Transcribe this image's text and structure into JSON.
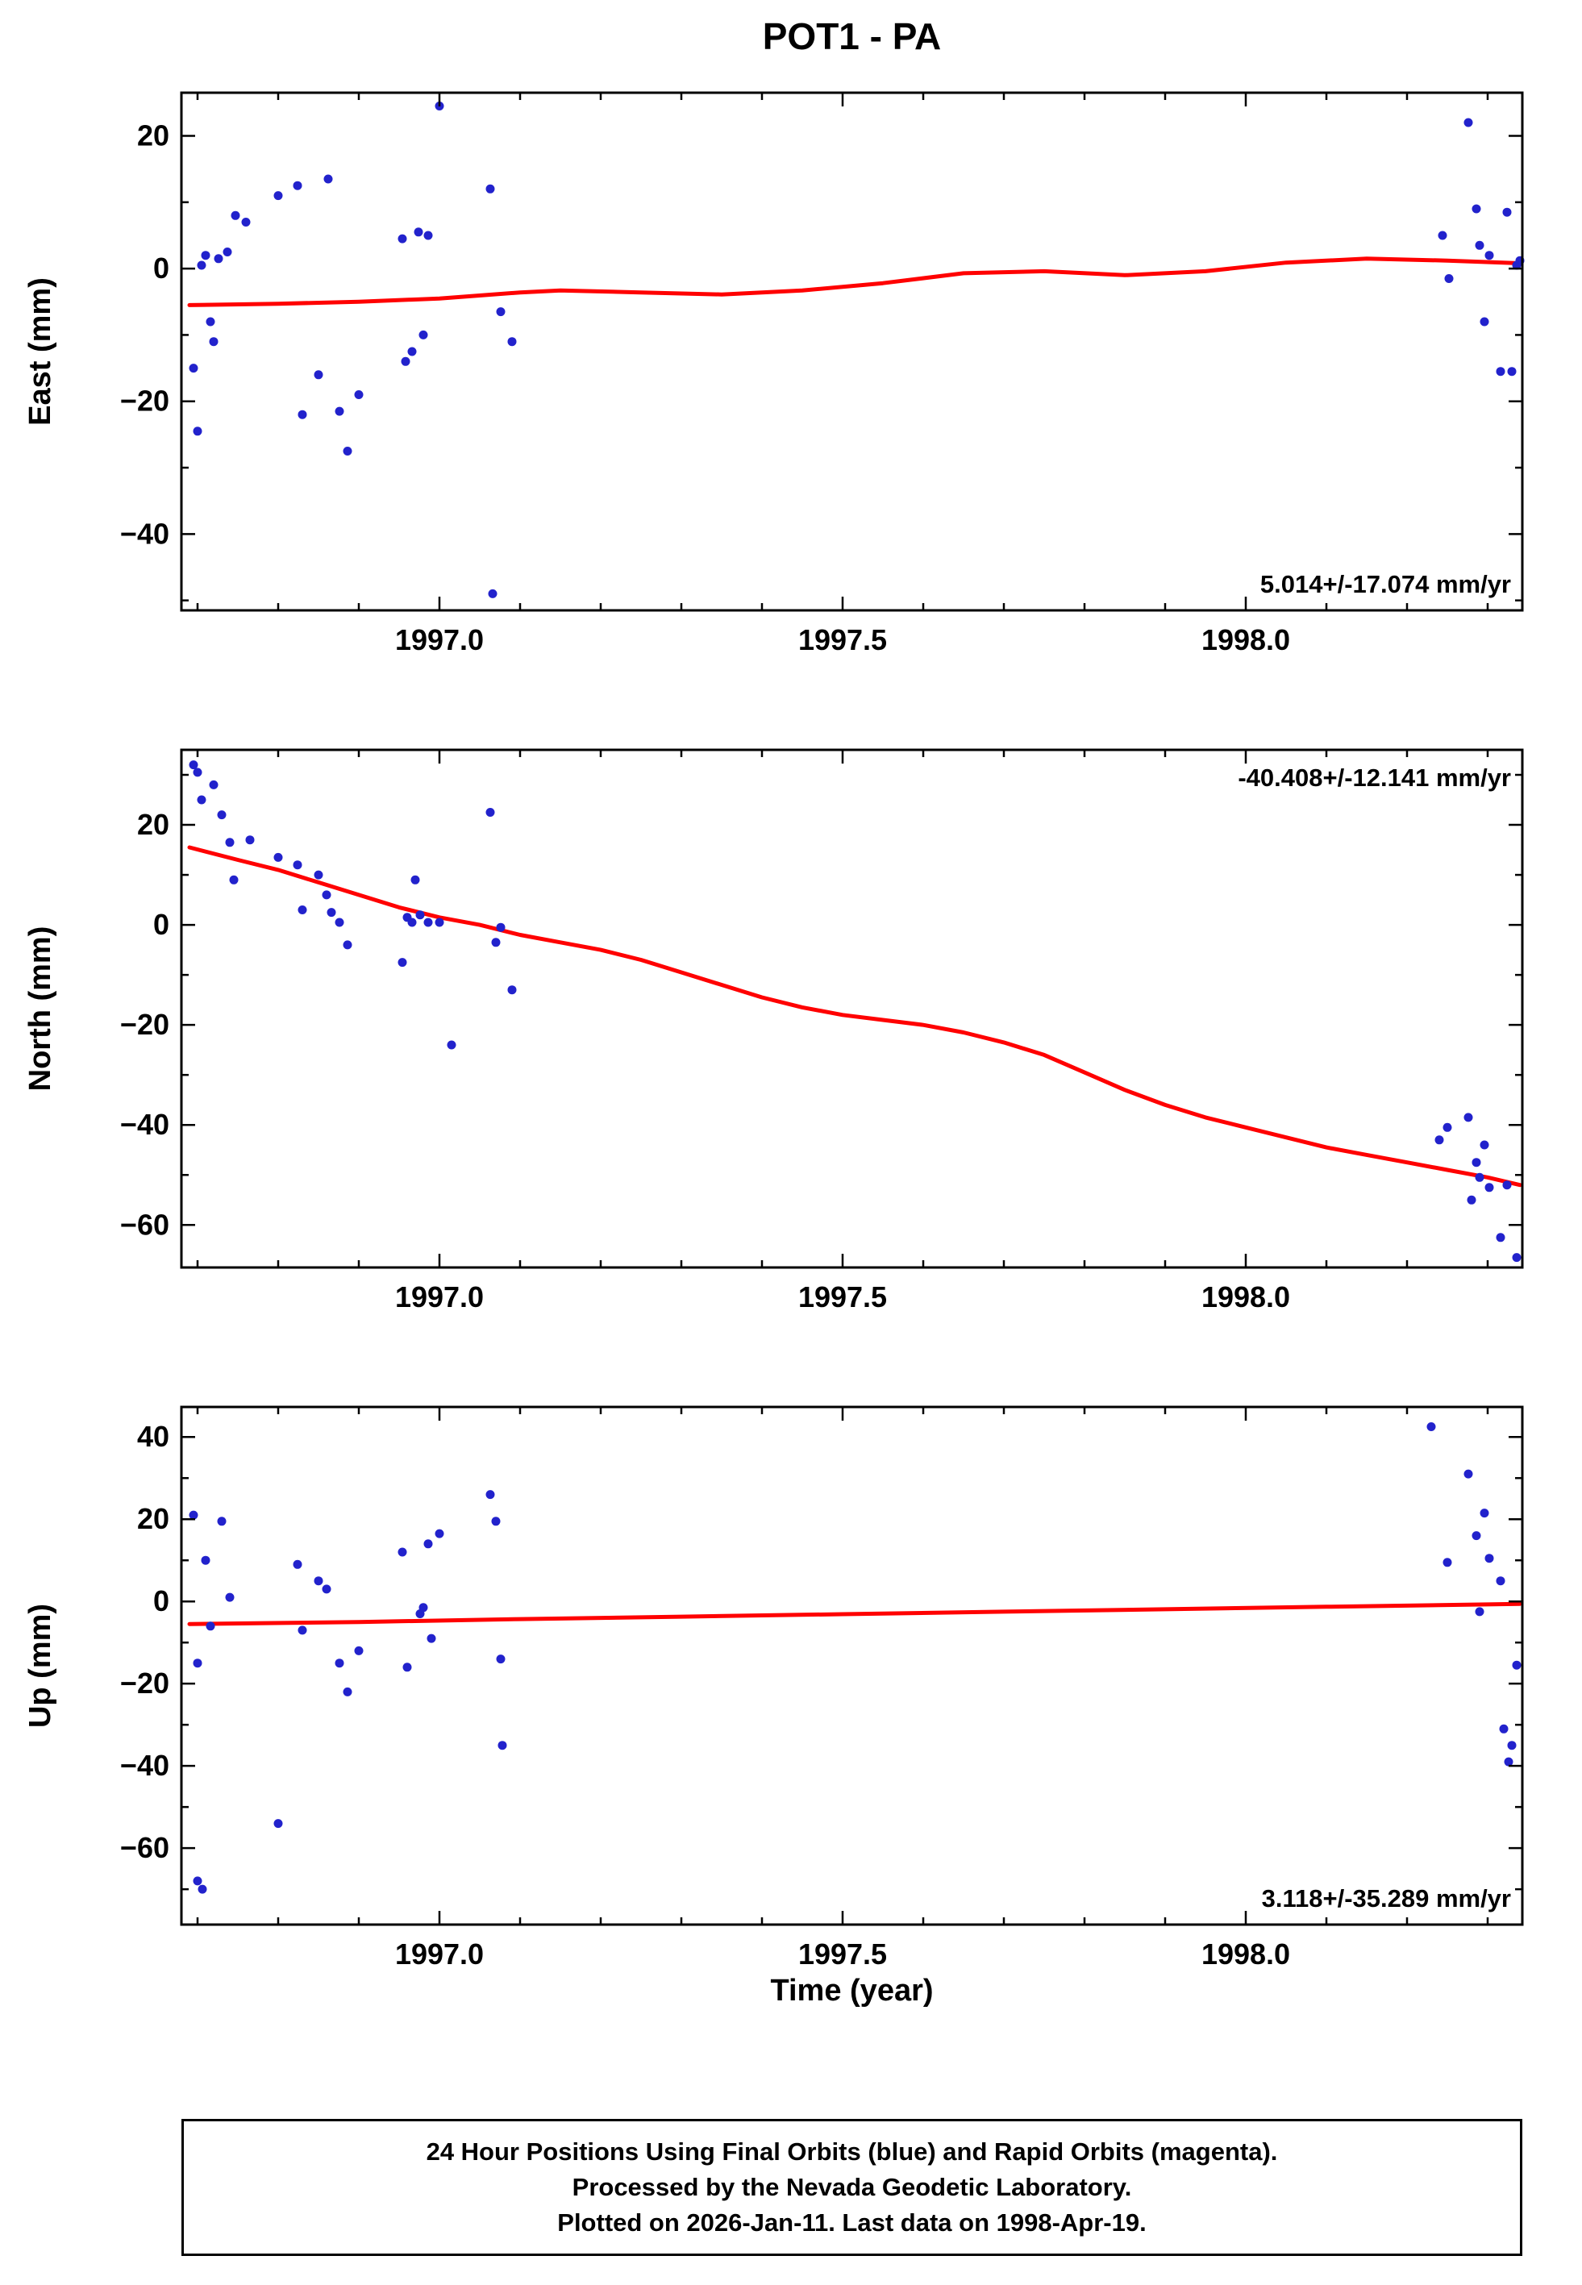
{
  "title": "POT1 - PA",
  "xlabel": "Time (year)",
  "colors": {
    "points": "#2222cc",
    "trend": "#ff0000",
    "frame": "#000000"
  },
  "footer": {
    "line1": "24 Hour Positions Using Final Orbits (blue) and Rapid Orbits (magenta).",
    "line2": "Processed by the Nevada Geodetic Laboratory.",
    "line3": "Plotted on 2026-Jan-11. Last data on 1998-Apr-19."
  },
  "chart_data": [
    {
      "type": "scatter",
      "name": "east",
      "ylabel": "East (mm)",
      "annotation": "5.014+/-17.074 mm/yr",
      "annotation_pos": "bottom-right",
      "xlim": [
        1996.68,
        1998.343
      ],
      "ylim": [
        -51.5,
        26.5
      ],
      "xticks": [
        1997.0,
        1997.5,
        1998.0
      ],
      "yticks": [
        20,
        0,
        -20,
        -40
      ],
      "points": [
        [
          1996.695,
          -15
        ],
        [
          1996.7,
          -24.5
        ],
        [
          1996.705,
          0.5
        ],
        [
          1996.71,
          2
        ],
        [
          1996.716,
          -8
        ],
        [
          1996.72,
          -11
        ],
        [
          1996.726,
          1.5
        ],
        [
          1996.737,
          2.5
        ],
        [
          1996.747,
          8
        ],
        [
          1996.76,
          7
        ],
        [
          1996.8,
          11
        ],
        [
          1996.824,
          12.5
        ],
        [
          1996.83,
          -22
        ],
        [
          1996.85,
          -16
        ],
        [
          1996.862,
          13.5
        ],
        [
          1996.876,
          -21.5
        ],
        [
          1996.886,
          -27.5
        ],
        [
          1996.9,
          -19
        ],
        [
          1996.954,
          4.5
        ],
        [
          1996.958,
          -14
        ],
        [
          1996.966,
          -12.5
        ],
        [
          1996.974,
          5.5
        ],
        [
          1996.98,
          -10
        ],
        [
          1996.986,
          5
        ],
        [
          1997.0,
          24.5
        ],
        [
          1997.063,
          12
        ],
        [
          1997.066,
          -49
        ],
        [
          1997.076,
          -6.5
        ],
        [
          1997.09,
          -11
        ],
        [
          1998.244,
          5
        ],
        [
          1998.252,
          -1.5
        ],
        [
          1998.276,
          22
        ],
        [
          1998.286,
          9
        ],
        [
          1998.29,
          3.5
        ],
        [
          1998.296,
          -8
        ],
        [
          1998.302,
          2
        ],
        [
          1998.316,
          -15.5
        ],
        [
          1998.324,
          8.5
        ],
        [
          1998.33,
          -15.5
        ],
        [
          1998.336,
          0.5
        ],
        [
          1998.34,
          1.2
        ]
      ],
      "trend": [
        [
          1996.69,
          -5.5
        ],
        [
          1996.8,
          -5.3
        ],
        [
          1996.9,
          -5.0
        ],
        [
          1997.0,
          -4.5
        ],
        [
          1997.1,
          -3.6
        ],
        [
          1997.15,
          -3.3
        ],
        [
          1997.25,
          -3.6
        ],
        [
          1997.35,
          -3.9
        ],
        [
          1997.45,
          -3.3
        ],
        [
          1997.55,
          -2.2
        ],
        [
          1997.65,
          -0.7
        ],
        [
          1997.75,
          -0.4
        ],
        [
          1997.85,
          -1.0
        ],
        [
          1997.95,
          -0.4
        ],
        [
          1998.05,
          0.9
        ],
        [
          1998.15,
          1.5
        ],
        [
          1998.25,
          1.2
        ],
        [
          1998.34,
          0.8
        ]
      ]
    },
    {
      "type": "scatter",
      "name": "north",
      "ylabel": "North (mm)",
      "annotation": "-40.408+/-12.141 mm/yr",
      "annotation_pos": "top-right",
      "xlim": [
        1996.68,
        1998.343
      ],
      "ylim": [
        -68.5,
        35
      ],
      "xticks": [
        1997.0,
        1997.5,
        1998.0
      ],
      "yticks": [
        20,
        0,
        -20,
        -40,
        -60
      ],
      "points": [
        [
          1996.695,
          32
        ],
        [
          1996.7,
          30.5
        ],
        [
          1996.705,
          25
        ],
        [
          1996.72,
          28
        ],
        [
          1996.73,
          22
        ],
        [
          1996.74,
          16.5
        ],
        [
          1996.745,
          9
        ],
        [
          1996.765,
          17
        ],
        [
          1996.8,
          13.5
        ],
        [
          1996.824,
          12
        ],
        [
          1996.83,
          3
        ],
        [
          1996.85,
          10
        ],
        [
          1996.86,
          6
        ],
        [
          1996.866,
          2.5
        ],
        [
          1996.876,
          0.5
        ],
        [
          1996.886,
          -4
        ],
        [
          1996.954,
          -7.5
        ],
        [
          1996.96,
          1.5
        ],
        [
          1996.966,
          0.5
        ],
        [
          1996.97,
          9
        ],
        [
          1996.976,
          2
        ],
        [
          1996.986,
          0.5
        ],
        [
          1997.0,
          0.5
        ],
        [
          1997.015,
          -24
        ],
        [
          1997.063,
          22.5
        ],
        [
          1997.07,
          -3.5
        ],
        [
          1997.076,
          -0.5
        ],
        [
          1997.09,
          -13
        ],
        [
          1998.24,
          -43
        ],
        [
          1998.25,
          -40.5
        ],
        [
          1998.276,
          -38.5
        ],
        [
          1998.28,
          -55
        ],
        [
          1998.286,
          -47.5
        ],
        [
          1998.29,
          -50.5
        ],
        [
          1998.296,
          -44
        ],
        [
          1998.302,
          -52.5
        ],
        [
          1998.316,
          -62.5
        ],
        [
          1998.324,
          -52
        ],
        [
          1998.336,
          -66.5
        ]
      ],
      "trend": [
        [
          1996.69,
          15.5
        ],
        [
          1996.75,
          13
        ],
        [
          1996.8,
          11
        ],
        [
          1996.85,
          8.5
        ],
        [
          1996.9,
          6
        ],
        [
          1996.95,
          3.5
        ],
        [
          1997.0,
          1.5
        ],
        [
          1997.05,
          0
        ],
        [
          1997.1,
          -2
        ],
        [
          1997.15,
          -3.5
        ],
        [
          1997.2,
          -5
        ],
        [
          1997.25,
          -7
        ],
        [
          1997.3,
          -9.5
        ],
        [
          1997.35,
          -12
        ],
        [
          1997.4,
          -14.5
        ],
        [
          1997.45,
          -16.5
        ],
        [
          1997.5,
          -18
        ],
        [
          1997.55,
          -19
        ],
        [
          1997.6,
          -20
        ],
        [
          1997.65,
          -21.5
        ],
        [
          1997.7,
          -23.5
        ],
        [
          1997.75,
          -26
        ],
        [
          1997.8,
          -29.5
        ],
        [
          1997.85,
          -33
        ],
        [
          1997.9,
          -36
        ],
        [
          1997.95,
          -38.5
        ],
        [
          1998.0,
          -40.5
        ],
        [
          1998.05,
          -42.5
        ],
        [
          1998.1,
          -44.5
        ],
        [
          1998.15,
          -46
        ],
        [
          1998.2,
          -47.5
        ],
        [
          1998.25,
          -49
        ],
        [
          1998.3,
          -50.5
        ],
        [
          1998.34,
          -52
        ]
      ]
    },
    {
      "type": "scatter",
      "name": "up",
      "ylabel": "Up (mm)",
      "annotation": "3.118+/-35.289 mm/yr",
      "annotation_pos": "bottom-right",
      "xlim": [
        1996.68,
        1998.343
      ],
      "ylim": [
        -78.6,
        47.3
      ],
      "xticks": [
        1997.0,
        1997.5,
        1998.0
      ],
      "yticks": [
        40,
        20,
        0,
        -20,
        -40,
        -60
      ],
      "points": [
        [
          1996.695,
          21
        ],
        [
          1996.7,
          -15
        ],
        [
          1996.7,
          -68
        ],
        [
          1996.706,
          -70
        ],
        [
          1996.71,
          10
        ],
        [
          1996.716,
          -6
        ],
        [
          1996.73,
          19.5
        ],
        [
          1996.74,
          1
        ],
        [
          1996.8,
          -54
        ],
        [
          1996.824,
          9
        ],
        [
          1996.83,
          -7
        ],
        [
          1996.85,
          5
        ],
        [
          1996.86,
          3
        ],
        [
          1996.876,
          -15
        ],
        [
          1996.886,
          -22
        ],
        [
          1996.9,
          -12
        ],
        [
          1996.954,
          12
        ],
        [
          1996.96,
          -16
        ],
        [
          1996.976,
          -3
        ],
        [
          1996.98,
          -1.5
        ],
        [
          1996.986,
          14
        ],
        [
          1996.99,
          -9
        ],
        [
          1997.0,
          16.5
        ],
        [
          1997.063,
          26
        ],
        [
          1997.07,
          19.5
        ],
        [
          1997.076,
          -14
        ],
        [
          1997.078,
          -35
        ],
        [
          1998.23,
          42.5
        ],
        [
          1998.25,
          9.5
        ],
        [
          1998.276,
          31
        ],
        [
          1998.286,
          16
        ],
        [
          1998.29,
          -2.5
        ],
        [
          1998.296,
          21.5
        ],
        [
          1998.302,
          10.5
        ],
        [
          1998.316,
          5
        ],
        [
          1998.32,
          -31
        ],
        [
          1998.326,
          -39
        ],
        [
          1998.33,
          -35
        ],
        [
          1998.336,
          -15.5
        ]
      ],
      "trend": [
        [
          1996.69,
          -5.5
        ],
        [
          1996.9,
          -5.0
        ],
        [
          1997.1,
          -4.3
        ],
        [
          1997.3,
          -3.7
        ],
        [
          1997.5,
          -3.1
        ],
        [
          1997.7,
          -2.5
        ],
        [
          1997.9,
          -1.9
        ],
        [
          1998.1,
          -1.3
        ],
        [
          1998.34,
          -0.6
        ]
      ]
    }
  ]
}
